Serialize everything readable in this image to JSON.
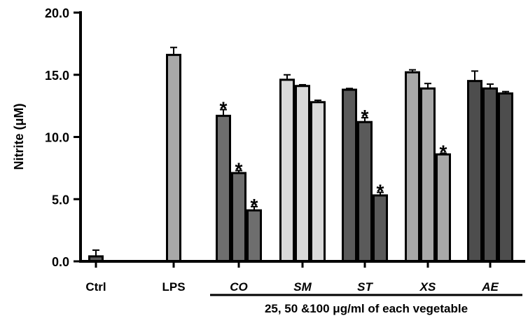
{
  "chart_data": {
    "type": "bar",
    "ylabel": "Nitrite (μM)",
    "ylim": [
      0,
      20
    ],
    "yticks": [
      "0.0",
      "5.0",
      "10.0",
      "15.0",
      "20.0"
    ],
    "grid": false,
    "legend": "none",
    "group_note": "25, 50 &100 μg/ml of each vegetable",
    "significance_marker": "*",
    "categories": [
      {
        "label": "Ctrl",
        "italic": false,
        "bars": [
          {
            "value": 0.4,
            "error": 0.5,
            "color": "#5a5a5a",
            "significant": false
          }
        ]
      },
      {
        "label": "LPS",
        "italic": false,
        "bars": [
          {
            "value": 16.6,
            "error": 0.6,
            "color": "#a8a8a8",
            "significant": false
          }
        ]
      },
      {
        "label": "CO",
        "italic": true,
        "bars": [
          {
            "value": 11.7,
            "error": 0.5,
            "color": "#6e6e6e",
            "significant": true
          },
          {
            "value": 7.1,
            "error": 0.2,
            "color": "#6e6e6e",
            "significant": true
          },
          {
            "value": 4.1,
            "error": 0.3,
            "color": "#6e6e6e",
            "significant": true
          }
        ]
      },
      {
        "label": "SM",
        "italic": true,
        "bars": [
          {
            "value": 14.6,
            "error": 0.4,
            "color": "#d9d9d9",
            "significant": false
          },
          {
            "value": 14.1,
            "error": 0.1,
            "color": "#d9d9d9",
            "significant": false
          },
          {
            "value": 12.8,
            "error": 0.15,
            "color": "#d9d9d9",
            "significant": false
          }
        ]
      },
      {
        "label": "ST",
        "italic": true,
        "bars": [
          {
            "value": 13.8,
            "error": 0.1,
            "color": "#5a5a5a",
            "significant": false
          },
          {
            "value": 11.2,
            "error": 0.35,
            "color": "#5a5a5a",
            "significant": true
          },
          {
            "value": 5.3,
            "error": 0.25,
            "color": "#5a5a5a",
            "significant": true
          }
        ]
      },
      {
        "label": "XS",
        "italic": true,
        "bars": [
          {
            "value": 15.2,
            "error": 0.2,
            "color": "#a8a8a8",
            "significant": false
          },
          {
            "value": 13.9,
            "error": 0.4,
            "color": "#a8a8a8",
            "significant": false
          },
          {
            "value": 8.6,
            "error": 0.1,
            "color": "#a8a8a8",
            "significant": true
          }
        ]
      },
      {
        "label": "AE",
        "italic": true,
        "bars": [
          {
            "value": 14.5,
            "error": 0.8,
            "color": "#4d4d4d",
            "significant": false
          },
          {
            "value": 13.9,
            "error": 0.35,
            "color": "#4d4d4d",
            "significant": false
          },
          {
            "value": 13.5,
            "error": 0.15,
            "color": "#4d4d4d",
            "significant": false
          }
        ]
      }
    ]
  }
}
